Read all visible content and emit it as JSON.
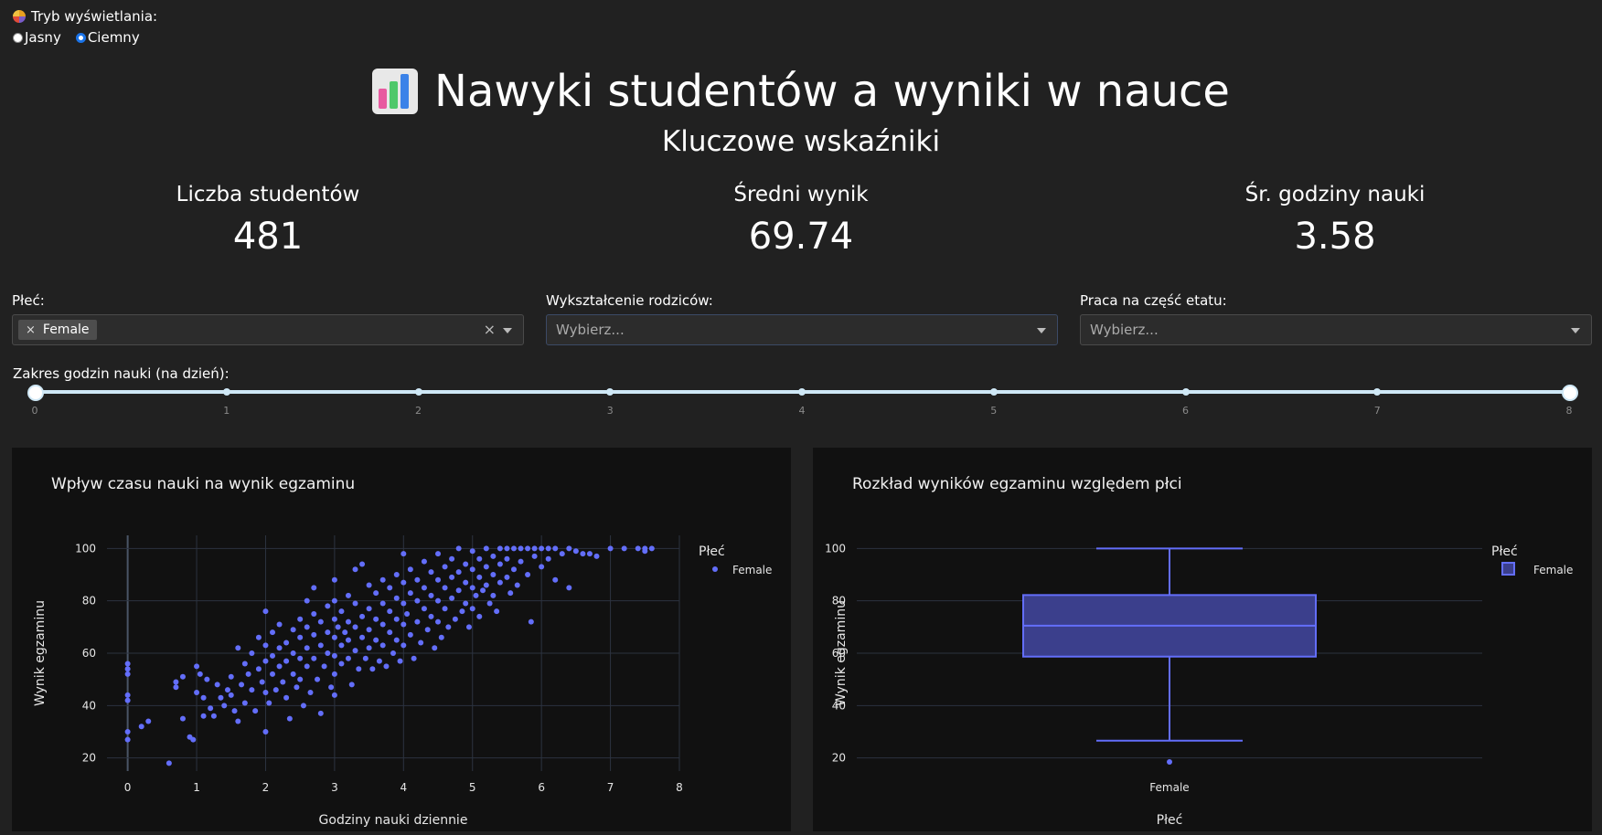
{
  "mode": {
    "label": "Tryb wyświetlania:",
    "options": [
      "Jasny",
      "Ciemny"
    ],
    "selected": "Ciemny"
  },
  "header": {
    "title": "Nawyki studentów a wyniki w nauce",
    "subtitle": "Kluczowe wskaźniki"
  },
  "kpis": [
    {
      "label": "Liczba studentów",
      "value": "481"
    },
    {
      "label": "Średni wynik",
      "value": "69.74"
    },
    {
      "label": "Śr. godziny nauki",
      "value": "3.58"
    }
  ],
  "filters": {
    "gender": {
      "label": "Płeć:",
      "chip": "Female"
    },
    "parent_edu": {
      "label": "Wykształcenie rodziców:",
      "placeholder": "Wybierz..."
    },
    "part_time": {
      "label": "Praca na część etatu:",
      "placeholder": "Wybierz..."
    }
  },
  "slider": {
    "label": "Zakres godzin nauki (na dzień):",
    "min": 0,
    "max": 8,
    "range": [
      0,
      8
    ],
    "ticks": [
      "0",
      "1",
      "2",
      "3",
      "4",
      "5",
      "6",
      "7",
      "8"
    ]
  },
  "colors": {
    "series": "#636efa",
    "box_fill": "#3b3f8c",
    "bg": "#212121",
    "plot_bg": "#111111"
  },
  "chart_data": [
    {
      "type": "scatter",
      "title": "Wpływ czasu nauki na wynik egzaminu",
      "xlabel": "Godziny nauki dziennie",
      "ylabel": "Wynik egzaminu",
      "xlim": [
        -0.3,
        8
      ],
      "ylim": [
        15,
        105
      ],
      "xticks": [
        0,
        1,
        2,
        3,
        4,
        5,
        6,
        7,
        8
      ],
      "yticks": [
        20,
        40,
        60,
        80,
        100
      ],
      "legend_title": "Płeć",
      "series": [
        {
          "name": "Female"
        }
      ],
      "points": [
        [
          0,
          56
        ],
        [
          0,
          54
        ],
        [
          0,
          52
        ],
        [
          0,
          44
        ],
        [
          0,
          42
        ],
        [
          0,
          30
        ],
        [
          0,
          27
        ],
        [
          0.2,
          32
        ],
        [
          0.3,
          34
        ],
        [
          0.6,
          18
        ],
        [
          0.7,
          47
        ],
        [
          0.7,
          49
        ],
        [
          0.8,
          35
        ],
        [
          0.8,
          51
        ],
        [
          0.9,
          28
        ],
        [
          0.95,
          27
        ],
        [
          1.0,
          45
        ],
        [
          1.0,
          55
        ],
        [
          1.05,
          52
        ],
        [
          1.1,
          43
        ],
        [
          1.1,
          36
        ],
        [
          1.15,
          50
        ],
        [
          1.2,
          39
        ],
        [
          1.25,
          36
        ],
        [
          1.3,
          48
        ],
        [
          1.35,
          43
        ],
        [
          1.4,
          40
        ],
        [
          1.45,
          46
        ],
        [
          1.5,
          51
        ],
        [
          1.5,
          44
        ],
        [
          1.55,
          38
        ],
        [
          1.6,
          62
        ],
        [
          1.6,
          34
        ],
        [
          1.65,
          48
        ],
        [
          1.7,
          56
        ],
        [
          1.7,
          41
        ],
        [
          1.75,
          52
        ],
        [
          1.8,
          60
        ],
        [
          1.8,
          46
        ],
        [
          1.85,
          38
        ],
        [
          1.9,
          66
        ],
        [
          1.9,
          54
        ],
        [
          1.95,
          49
        ],
        [
          2.0,
          76
        ],
        [
          2.0,
          63
        ],
        [
          2.0,
          57
        ],
        [
          2.0,
          45
        ],
        [
          2.0,
          30
        ],
        [
          2.05,
          41
        ],
        [
          2.1,
          68
        ],
        [
          2.1,
          59
        ],
        [
          2.1,
          52
        ],
        [
          2.15,
          46
        ],
        [
          2.2,
          71
        ],
        [
          2.2,
          62
        ],
        [
          2.2,
          55
        ],
        [
          2.25,
          49
        ],
        [
          2.3,
          64
        ],
        [
          2.3,
          57
        ],
        [
          2.3,
          43
        ],
        [
          2.35,
          35
        ],
        [
          2.4,
          69
        ],
        [
          2.4,
          60
        ],
        [
          2.4,
          52
        ],
        [
          2.45,
          47
        ],
        [
          2.5,
          73
        ],
        [
          2.5,
          66
        ],
        [
          2.5,
          58
        ],
        [
          2.5,
          50
        ],
        [
          2.55,
          40
        ],
        [
          2.6,
          80
        ],
        [
          2.6,
          70
        ],
        [
          2.6,
          62
        ],
        [
          2.6,
          55
        ],
        [
          2.65,
          45
        ],
        [
          2.7,
          85
        ],
        [
          2.7,
          75
        ],
        [
          2.7,
          67
        ],
        [
          2.7,
          58
        ],
        [
          2.75,
          50
        ],
        [
          2.8,
          72
        ],
        [
          2.8,
          63
        ],
        [
          2.8,
          37
        ],
        [
          2.85,
          55
        ],
        [
          2.9,
          78
        ],
        [
          2.9,
          68
        ],
        [
          2.9,
          60
        ],
        [
          2.95,
          47
        ],
        [
          3.0,
          88
        ],
        [
          3.0,
          80
        ],
        [
          3.0,
          73
        ],
        [
          3.0,
          66
        ],
        [
          3.0,
          59
        ],
        [
          3.0,
          52
        ],
        [
          3.0,
          44
        ],
        [
          3.05,
          70
        ],
        [
          3.1,
          76
        ],
        [
          3.1,
          63
        ],
        [
          3.1,
          56
        ],
        [
          3.15,
          68
        ],
        [
          3.2,
          82
        ],
        [
          3.2,
          72
        ],
        [
          3.2,
          65
        ],
        [
          3.2,
          58
        ],
        [
          3.25,
          48
        ],
        [
          3.3,
          92
        ],
        [
          3.3,
          79
        ],
        [
          3.3,
          70
        ],
        [
          3.3,
          61
        ],
        [
          3.35,
          54
        ],
        [
          3.4,
          94
        ],
        [
          3.4,
          74
        ],
        [
          3.4,
          66
        ],
        [
          3.45,
          58
        ],
        [
          3.5,
          86
        ],
        [
          3.5,
          77
        ],
        [
          3.5,
          69
        ],
        [
          3.5,
          62
        ],
        [
          3.55,
          54
        ],
        [
          3.6,
          83
        ],
        [
          3.6,
          73
        ],
        [
          3.6,
          65
        ],
        [
          3.65,
          57
        ],
        [
          3.7,
          88
        ],
        [
          3.7,
          79
        ],
        [
          3.7,
          71
        ],
        [
          3.7,
          63
        ],
        [
          3.75,
          55
        ],
        [
          3.8,
          85
        ],
        [
          3.8,
          76
        ],
        [
          3.8,
          68
        ],
        [
          3.85,
          60
        ],
        [
          3.9,
          90
        ],
        [
          3.9,
          81
        ],
        [
          3.9,
          73
        ],
        [
          3.9,
          65
        ],
        [
          3.95,
          57
        ],
        [
          4.0,
          98
        ],
        [
          4.0,
          87
        ],
        [
          4.0,
          79
        ],
        [
          4.0,
          71
        ],
        [
          4.0,
          63
        ],
        [
          4.05,
          75
        ],
        [
          4.1,
          92
        ],
        [
          4.1,
          83
        ],
        [
          4.1,
          67
        ],
        [
          4.15,
          58
        ],
        [
          4.2,
          88
        ],
        [
          4.2,
          80
        ],
        [
          4.2,
          72
        ],
        [
          4.25,
          64
        ],
        [
          4.3,
          95
        ],
        [
          4.3,
          85
        ],
        [
          4.3,
          77
        ],
        [
          4.35,
          69
        ],
        [
          4.4,
          91
        ],
        [
          4.4,
          82
        ],
        [
          4.4,
          74
        ],
        [
          4.45,
          62
        ],
        [
          4.5,
          98
        ],
        [
          4.5,
          88
        ],
        [
          4.5,
          80
        ],
        [
          4.5,
          72
        ],
        [
          4.55,
          66
        ],
        [
          4.6,
          93
        ],
        [
          4.6,
          85
        ],
        [
          4.6,
          77
        ],
        [
          4.65,
          70
        ],
        [
          4.7,
          96
        ],
        [
          4.7,
          89
        ],
        [
          4.7,
          81
        ],
        [
          4.75,
          73
        ],
        [
          4.8,
          100
        ],
        [
          4.8,
          91
        ],
        [
          4.8,
          84
        ],
        [
          4.85,
          76
        ],
        [
          4.9,
          94
        ],
        [
          4.9,
          87
        ],
        [
          4.9,
          79
        ],
        [
          4.95,
          70
        ],
        [
          5.0,
          99
        ],
        [
          5.0,
          92
        ],
        [
          5.0,
          85
        ],
        [
          5.0,
          77
        ],
        [
          5.05,
          82
        ],
        [
          5.1,
          96
        ],
        [
          5.1,
          89
        ],
        [
          5.1,
          74
        ],
        [
          5.15,
          84
        ],
        [
          5.2,
          100
        ],
        [
          5.2,
          93
        ],
        [
          5.2,
          86
        ],
        [
          5.25,
          79
        ],
        [
          5.3,
          97
        ],
        [
          5.3,
          90
        ],
        [
          5.3,
          82
        ],
        [
          5.35,
          76
        ],
        [
          5.4,
          100
        ],
        [
          5.4,
          94
        ],
        [
          5.4,
          87
        ],
        [
          5.5,
          100
        ],
        [
          5.5,
          96
        ],
        [
          5.5,
          89
        ],
        [
          5.55,
          83
        ],
        [
          5.6,
          100
        ],
        [
          5.6,
          92
        ],
        [
          5.65,
          86
        ],
        [
          5.7,
          100
        ],
        [
          5.7,
          95
        ],
        [
          5.8,
          100
        ],
        [
          5.8,
          90
        ],
        [
          5.85,
          72
        ],
        [
          5.9,
          100
        ],
        [
          5.9,
          97
        ],
        [
          6.0,
          100
        ],
        [
          6.0,
          93
        ],
        [
          6.1,
          100
        ],
        [
          6.1,
          96
        ],
        [
          6.2,
          100
        ],
        [
          6.2,
          88
        ],
        [
          6.3,
          98
        ],
        [
          6.4,
          100
        ],
        [
          6.4,
          85
        ],
        [
          6.5,
          99
        ],
        [
          6.6,
          98
        ],
        [
          6.7,
          98
        ],
        [
          6.8,
          97
        ],
        [
          7.0,
          100
        ],
        [
          7.2,
          100
        ],
        [
          7.4,
          100
        ],
        [
          7.5,
          99
        ],
        [
          7.5,
          100
        ],
        [
          7.6,
          100
        ]
      ]
    },
    {
      "type": "box",
      "title": "Rozkład wyników egzaminu względem płci",
      "xlabel": "Płeć",
      "ylabel": "Wynik egzaminu",
      "ylim": [
        15,
        105
      ],
      "yticks": [
        20,
        40,
        60,
        80,
        100
      ],
      "legend_title": "Płeć",
      "categories": [
        "Female"
      ],
      "series": [
        {
          "name": "Female",
          "min": 26.6,
          "q1": 58.7,
          "median": 70.5,
          "q3": 82.2,
          "max": 100,
          "outliers": [
            18.5
          ]
        }
      ]
    }
  ]
}
